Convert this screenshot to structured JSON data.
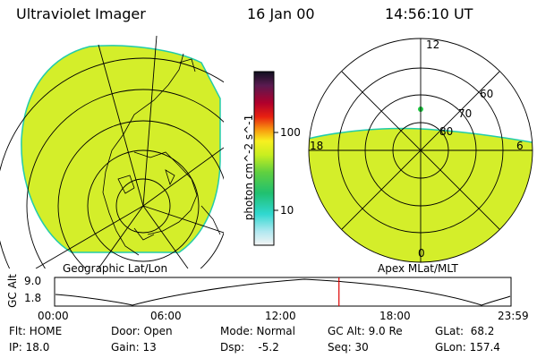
{
  "header": {
    "instrument": "Ultraviolet Imager",
    "date": "16 Jan 00",
    "time": "14:56:10 UT"
  },
  "panels": {
    "left_label": "Geographic Lat/Lon",
    "right_label": "Apex MLat/MLT"
  },
  "colorbar": {
    "unit_label": "photon cm^-2 s^-1",
    "ticks": [
      "100",
      "10"
    ]
  },
  "polar_plot": {
    "mlt_labels": [
      "12",
      "18",
      "6",
      "0"
    ],
    "lat_labels": [
      "60",
      "70",
      "80"
    ]
  },
  "timeline": {
    "axis_label": "GC Alt",
    "y_ticks": [
      "9.0",
      "1.8"
    ],
    "x_ticks": [
      "00:00",
      "06:00",
      "12:00",
      "18:00",
      "23:59"
    ],
    "marker_fraction": 0.623
  },
  "info": {
    "flt": "Flt: HOME",
    "ip": "IP: 18.0",
    "door": "Door: Open",
    "gain": "Gain: 13",
    "mode": "Mode: Normal",
    "dsp": "Dsp:    -5.2",
    "gc_alt": "GC Alt: 9.0 Re",
    "seq": "Seq: 30",
    "glat": "GLat:  68.2",
    "glon": "GLon: 157.4"
  },
  "colors": {
    "aurora_fill": "#d4ee2a",
    "aurora_edge": "#22ccaa",
    "marker": "#dd0000"
  }
}
